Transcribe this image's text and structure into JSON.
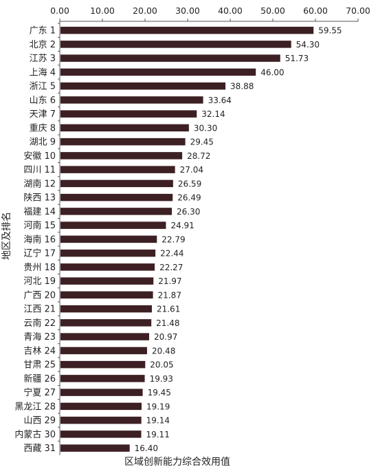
{
  "chart_data": {
    "type": "bar",
    "orientation": "horizontal",
    "title": "",
    "xlabel": "区域创新能力综合效用值",
    "ylabel": "地区及排名",
    "xlim": [
      0,
      70
    ],
    "xticks": [
      "0.00",
      "10.00",
      "20.00",
      "30.00",
      "40.00",
      "50.00",
      "60.00",
      "70.00"
    ],
    "x_axis_position": "top",
    "grid": false,
    "bar_color": "#3d2023",
    "categories": [
      "广东 1",
      "北京 2",
      "江苏 3",
      "上海 4",
      "浙江 5",
      "山东 6",
      "天津 7",
      "重庆 8",
      "湖北 9",
      "安徽 10",
      "四川 11",
      "湖南 12",
      "陕西 13",
      "福建 14",
      "河南 15",
      "海南 16",
      "辽宁 17",
      "贵州 18",
      "河北 19",
      "广西 20",
      "江西 21",
      "云南 22",
      "青海 23",
      "吉林 24",
      "甘肃 25",
      "新疆 26",
      "宁夏 27",
      "黑龙江 28",
      "山西 29",
      "内蒙古 30",
      "西藏 31"
    ],
    "values": [
      59.55,
      54.3,
      51.73,
      46.0,
      38.88,
      33.64,
      32.14,
      30.3,
      29.45,
      28.72,
      27.04,
      26.59,
      26.49,
      26.3,
      24.91,
      22.79,
      22.44,
      22.27,
      21.97,
      21.87,
      21.61,
      21.48,
      20.97,
      20.48,
      20.05,
      19.93,
      19.45,
      19.19,
      19.14,
      19.11,
      16.4
    ],
    "value_labels": [
      "59.55",
      "54.30",
      "51.73",
      "46.00",
      "38.88",
      "33.64",
      "32.14",
      "30.30",
      "29.45",
      "28.72",
      "27.04",
      "26.59",
      "26.49",
      "26.30",
      "24.91",
      "22.79",
      "22.44",
      "22.27",
      "21.97",
      "21.87",
      "21.61",
      "21.48",
      "20.97",
      "20.48",
      "20.05",
      "19.93",
      "19.45",
      "19.19",
      "19.14",
      "19.11",
      "16.40"
    ]
  }
}
